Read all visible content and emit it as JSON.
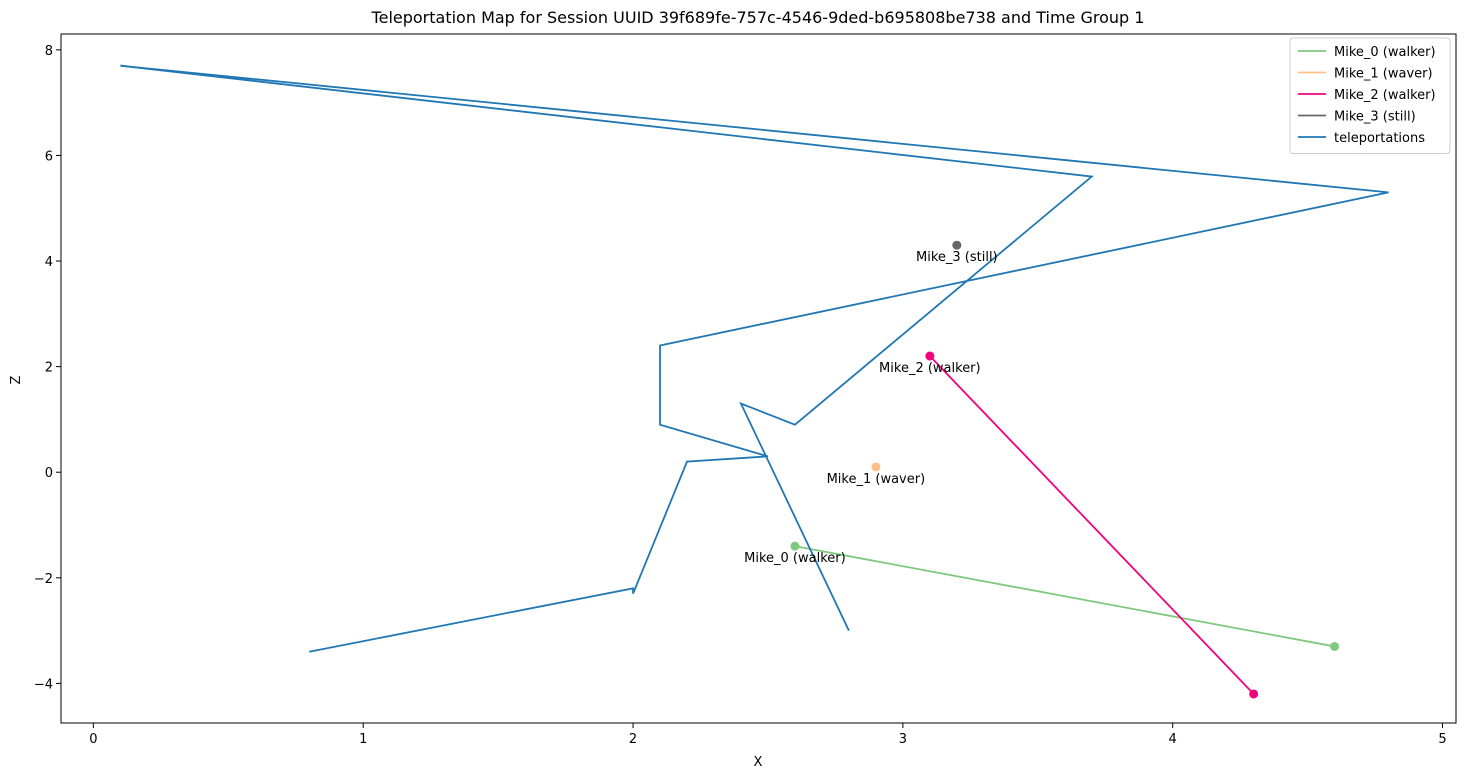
{
  "chart_data": {
    "type": "line",
    "title": "Teleportation Map for Session UUID 39f689fe-757c-4546-9ded-b695808be738 and Time Group 1",
    "xlabel": "X",
    "ylabel": "Z",
    "xlim": [
      -0.12,
      5.05
    ],
    "ylim": [
      -4.75,
      8.3
    ],
    "xticks": [
      0,
      1,
      2,
      3,
      4,
      5
    ],
    "yticks": [
      -4,
      -2,
      0,
      2,
      4,
      6,
      8
    ],
    "grid": false,
    "legend_position": "top-right",
    "series": [
      {
        "name": "Mike_0 (walker)",
        "color": "#7fc97f",
        "x": [
          2.6,
          4.6
        ],
        "y": [
          -1.4,
          -3.3
        ],
        "markers": "endpoints"
      },
      {
        "name": "Mike_1 (waver)",
        "color": "#fdc086",
        "x": [
          2.9
        ],
        "y": [
          0.1
        ],
        "markers": "endpoints"
      },
      {
        "name": "Mike_2 (walker)",
        "color": "#f0027f",
        "x": [
          3.1,
          4.3
        ],
        "y": [
          2.2,
          -4.2
        ],
        "markers": "endpoints"
      },
      {
        "name": "Mike_3 (still)",
        "color": "#666666",
        "x": [
          3.2
        ],
        "y": [
          4.3
        ],
        "markers": "endpoints"
      },
      {
        "name": "teleportations",
        "color": "#1f77b4",
        "x": [
          0.8,
          2.0,
          2.0,
          2.2,
          2.5,
          2.1,
          2.1,
          4.8,
          0.1,
          3.7,
          2.6,
          2.4,
          2.8
        ],
        "y": [
          -3.4,
          -2.2,
          -2.3,
          0.2,
          0.3,
          0.9,
          2.4,
          5.3,
          7.7,
          5.6,
          0.9,
          1.3,
          -3.0
        ],
        "markers": "none"
      }
    ],
    "annotations": [
      {
        "text": "Mike_0 (walker)",
        "x": 2.6,
        "y": -1.4
      },
      {
        "text": "Mike_1 (waver)",
        "x": 2.9,
        "y": 0.1
      },
      {
        "text": "Mike_2 (walker)",
        "x": 3.1,
        "y": 2.2
      },
      {
        "text": "Mike_3 (still)",
        "x": 3.2,
        "y": 4.3
      }
    ]
  }
}
